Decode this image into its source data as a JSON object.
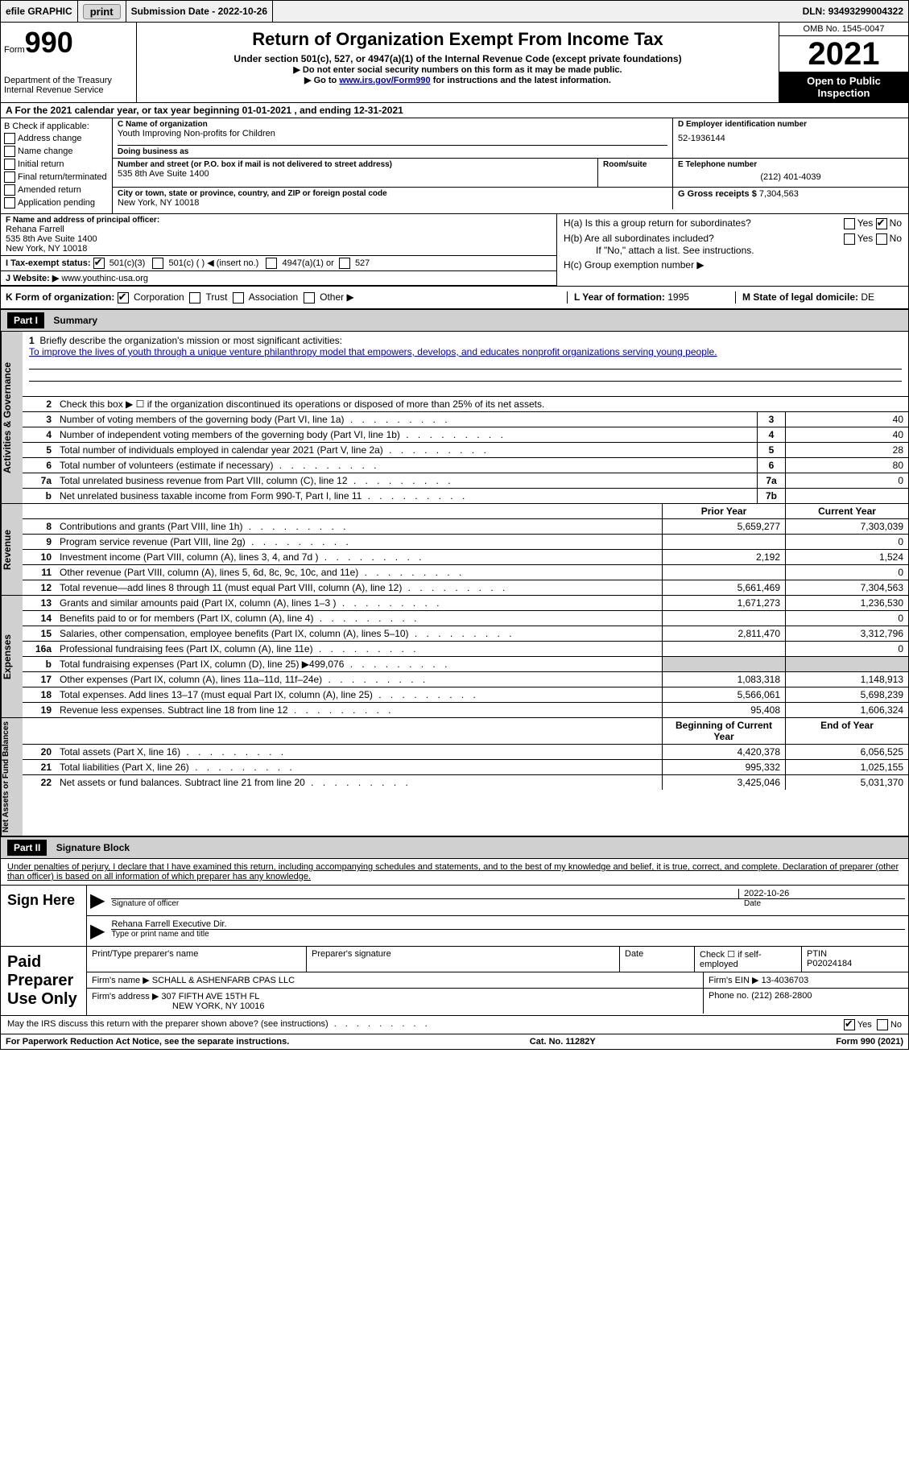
{
  "topbar": {
    "efile": "efile GRAPHIC",
    "print": "print",
    "sub_date_label": "Submission Date - ",
    "sub_date": "2022-10-26",
    "dln_label": "DLN: ",
    "dln": "93493299004322"
  },
  "header": {
    "form_label": "Form",
    "form_no": "990",
    "dept": "Department of the Treasury",
    "irs": "Internal Revenue Service",
    "title": "Return of Organization Exempt From Income Tax",
    "subtitle": "Under section 501(c), 527, or 4947(a)(1) of the Internal Revenue Code (except private foundations)",
    "note1": "▶ Do not enter social security numbers on this form as it may be made public.",
    "note2_a": "▶ Go to ",
    "note2_link": "www.irs.gov/Form990",
    "note2_b": " for instructions and the latest information.",
    "omb": "OMB No. 1545-0047",
    "year": "2021",
    "open": "Open to Public Inspection"
  },
  "rowA": {
    "text_a": "A For the 2021 calendar year, or tax year beginning ",
    "begin": "01-01-2021",
    "text_b": " , and ending ",
    "end": "12-31-2021"
  },
  "colB": {
    "header": "B Check if applicable:",
    "items": [
      "Address change",
      "Name change",
      "Initial return",
      "Final return/terminated",
      "Amended return",
      "Application pending"
    ]
  },
  "boxC": {
    "label": "C Name of organization",
    "name": "Youth Improving Non-profits for Children",
    "dba_label": "Doing business as",
    "addr_label": "Number and street (or P.O. box if mail is not delivered to street address)",
    "room_label": "Room/suite",
    "addr": "535 8th Ave Suite 1400",
    "city_label": "City or town, state or province, country, and ZIP or foreign postal code",
    "city": "New York, NY  10018"
  },
  "boxD": {
    "label": "D Employer identification number",
    "ein": "52-1936144"
  },
  "boxE": {
    "label": "E Telephone number",
    "phone": "(212) 401-4039"
  },
  "boxG": {
    "label": "G Gross receipts $ ",
    "val": "7,304,563"
  },
  "boxF": {
    "label": "F Name and address of principal officer:",
    "name": "Rehana Farrell",
    "addr1": "535 8th Ave Suite 1400",
    "addr2": "New York, NY  10018"
  },
  "boxH": {
    "ha": "H(a)  Is this a group return for subordinates?",
    "hb": "H(b)  Are all subordinates included?",
    "hb_note": "If \"No,\" attach a list. See instructions.",
    "hc": "H(c)  Group exemption number ▶",
    "yes": "Yes",
    "no": "No"
  },
  "boxI": {
    "label": "I   Tax-exempt status:",
    "o1": "501(c)(3)",
    "o2": "501(c) (   ) ◀ (insert no.)",
    "o3": "4947(a)(1) or",
    "o4": "527"
  },
  "boxJ": {
    "label": "J   Website: ▶  ",
    "val": "www.youthinc-usa.org"
  },
  "boxK": {
    "label": "K Form of organization:",
    "o1": "Corporation",
    "o2": "Trust",
    "o3": "Association",
    "o4": "Other ▶"
  },
  "boxL": {
    "label": "L Year of formation: ",
    "val": "1995"
  },
  "boxM": {
    "label": "M State of legal domicile: ",
    "val": "DE"
  },
  "part1": {
    "label": "Part I",
    "title": "Summary",
    "tab1": "Activities & Governance",
    "tab2": "Revenue",
    "tab3": "Expenses",
    "tab4": "Net Assets or Fund Balances",
    "line1_label": "Briefly describe the organization's mission or most significant activities:",
    "line1_text": "To improve the lives of youth through a unique venture philanthropy model that empowers, develops, and educates nonprofit organizations serving young people.",
    "line2": "Check this box ▶ ☐ if the organization discontinued its operations or disposed of more than 25% of its net assets.",
    "lines_gov": [
      {
        "n": "3",
        "t": "Number of voting members of the governing body (Part VI, line 1a)",
        "box": "3",
        "v": "40"
      },
      {
        "n": "4",
        "t": "Number of independent voting members of the governing body (Part VI, line 1b)",
        "box": "4",
        "v": "40"
      },
      {
        "n": "5",
        "t": "Total number of individuals employed in calendar year 2021 (Part V, line 2a)",
        "box": "5",
        "v": "28"
      },
      {
        "n": "6",
        "t": "Total number of volunteers (estimate if necessary)",
        "box": "6",
        "v": "80"
      },
      {
        "n": "7a",
        "t": "Total unrelated business revenue from Part VIII, column (C), line 12",
        "box": "7a",
        "v": "0"
      },
      {
        "n": "b",
        "t": "Net unrelated business taxable income from Form 990-T, Part I, line 11",
        "box": "7b",
        "v": ""
      }
    ],
    "prior_label": "Prior Year",
    "current_label": "Current Year",
    "lines_rev": [
      {
        "n": "8",
        "t": "Contributions and grants (Part VIII, line 1h)",
        "p": "5,659,277",
        "c": "7,303,039"
      },
      {
        "n": "9",
        "t": "Program service revenue (Part VIII, line 2g)",
        "p": "",
        "c": "0"
      },
      {
        "n": "10",
        "t": "Investment income (Part VIII, column (A), lines 3, 4, and 7d )",
        "p": "2,192",
        "c": "1,524"
      },
      {
        "n": "11",
        "t": "Other revenue (Part VIII, column (A), lines 5, 6d, 8c, 9c, 10c, and 11e)",
        "p": "",
        "c": "0"
      },
      {
        "n": "12",
        "t": "Total revenue—add lines 8 through 11 (must equal Part VIII, column (A), line 12)",
        "p": "5,661,469",
        "c": "7,304,563"
      }
    ],
    "lines_exp": [
      {
        "n": "13",
        "t": "Grants and similar amounts paid (Part IX, column (A), lines 1–3 )",
        "p": "1,671,273",
        "c": "1,236,530"
      },
      {
        "n": "14",
        "t": "Benefits paid to or for members (Part IX, column (A), line 4)",
        "p": "",
        "c": "0"
      },
      {
        "n": "15",
        "t": "Salaries, other compensation, employee benefits (Part IX, column (A), lines 5–10)",
        "p": "2,811,470",
        "c": "3,312,796"
      },
      {
        "n": "16a",
        "t": "Professional fundraising fees (Part IX, column (A), line 11e)",
        "p": "",
        "c": "0"
      },
      {
        "n": "b",
        "t": "Total fundraising expenses (Part IX, column (D), line 25) ▶499,076",
        "p": "SHADE",
        "c": "SHADE"
      },
      {
        "n": "17",
        "t": "Other expenses (Part IX, column (A), lines 11a–11d, 11f–24e)",
        "p": "1,083,318",
        "c": "1,148,913"
      },
      {
        "n": "18",
        "t": "Total expenses. Add lines 13–17 (must equal Part IX, column (A), line 25)",
        "p": "5,566,061",
        "c": "5,698,239"
      },
      {
        "n": "19",
        "t": "Revenue less expenses. Subtract line 18 from line 12",
        "p": "95,408",
        "c": "1,606,324"
      }
    ],
    "begin_label": "Beginning of Current Year",
    "end_label": "End of Year",
    "lines_net": [
      {
        "n": "20",
        "t": "Total assets (Part X, line 16)",
        "p": "4,420,378",
        "c": "6,056,525"
      },
      {
        "n": "21",
        "t": "Total liabilities (Part X, line 26)",
        "p": "995,332",
        "c": "1,025,155"
      },
      {
        "n": "22",
        "t": "Net assets or fund balances. Subtract line 21 from line 20",
        "p": "3,425,046",
        "c": "5,031,370"
      }
    ]
  },
  "part2": {
    "label": "Part II",
    "title": "Signature Block",
    "decl": "Under penalties of perjury, I declare that I have examined this return, including accompanying schedules and statements, and to the best of my knowledge and belief, it is true, correct, and complete. Declaration of preparer (other than officer) is based on all information of which preparer has any knowledge.",
    "sign_here": "Sign Here",
    "sig_officer": "Signature of officer",
    "sig_date": "2022-10-26",
    "date_label": "Date",
    "officer_name": "Rehana Farrell  Executive Dir.",
    "type_label": "Type or print name and title",
    "paid_prep": "Paid Preparer Use Only",
    "prep_name_label": "Print/Type preparer's name",
    "prep_sig_label": "Preparer's signature",
    "check_self": "Check ☐ if self-employed",
    "ptin_label": "PTIN",
    "ptin": "P02024184",
    "firm_name_label": "Firm's name    ▶ ",
    "firm_name": "SCHALL & ASHENFARB CPAS LLC",
    "firm_ein_label": "Firm's EIN ▶ ",
    "firm_ein": "13-4036703",
    "firm_addr_label": "Firm's address ▶ ",
    "firm_addr1": "307 FIFTH AVE 15TH FL",
    "firm_addr2": "NEW YORK, NY  10016",
    "phone_label": "Phone no. ",
    "phone": "(212) 268-2800",
    "discuss": "May the IRS discuss this return with the preparer shown above? (see instructions)"
  },
  "footer": {
    "left": "For Paperwork Reduction Act Notice, see the separate instructions.",
    "mid": "Cat. No. 11282Y",
    "right": "Form 990 (2021)"
  }
}
